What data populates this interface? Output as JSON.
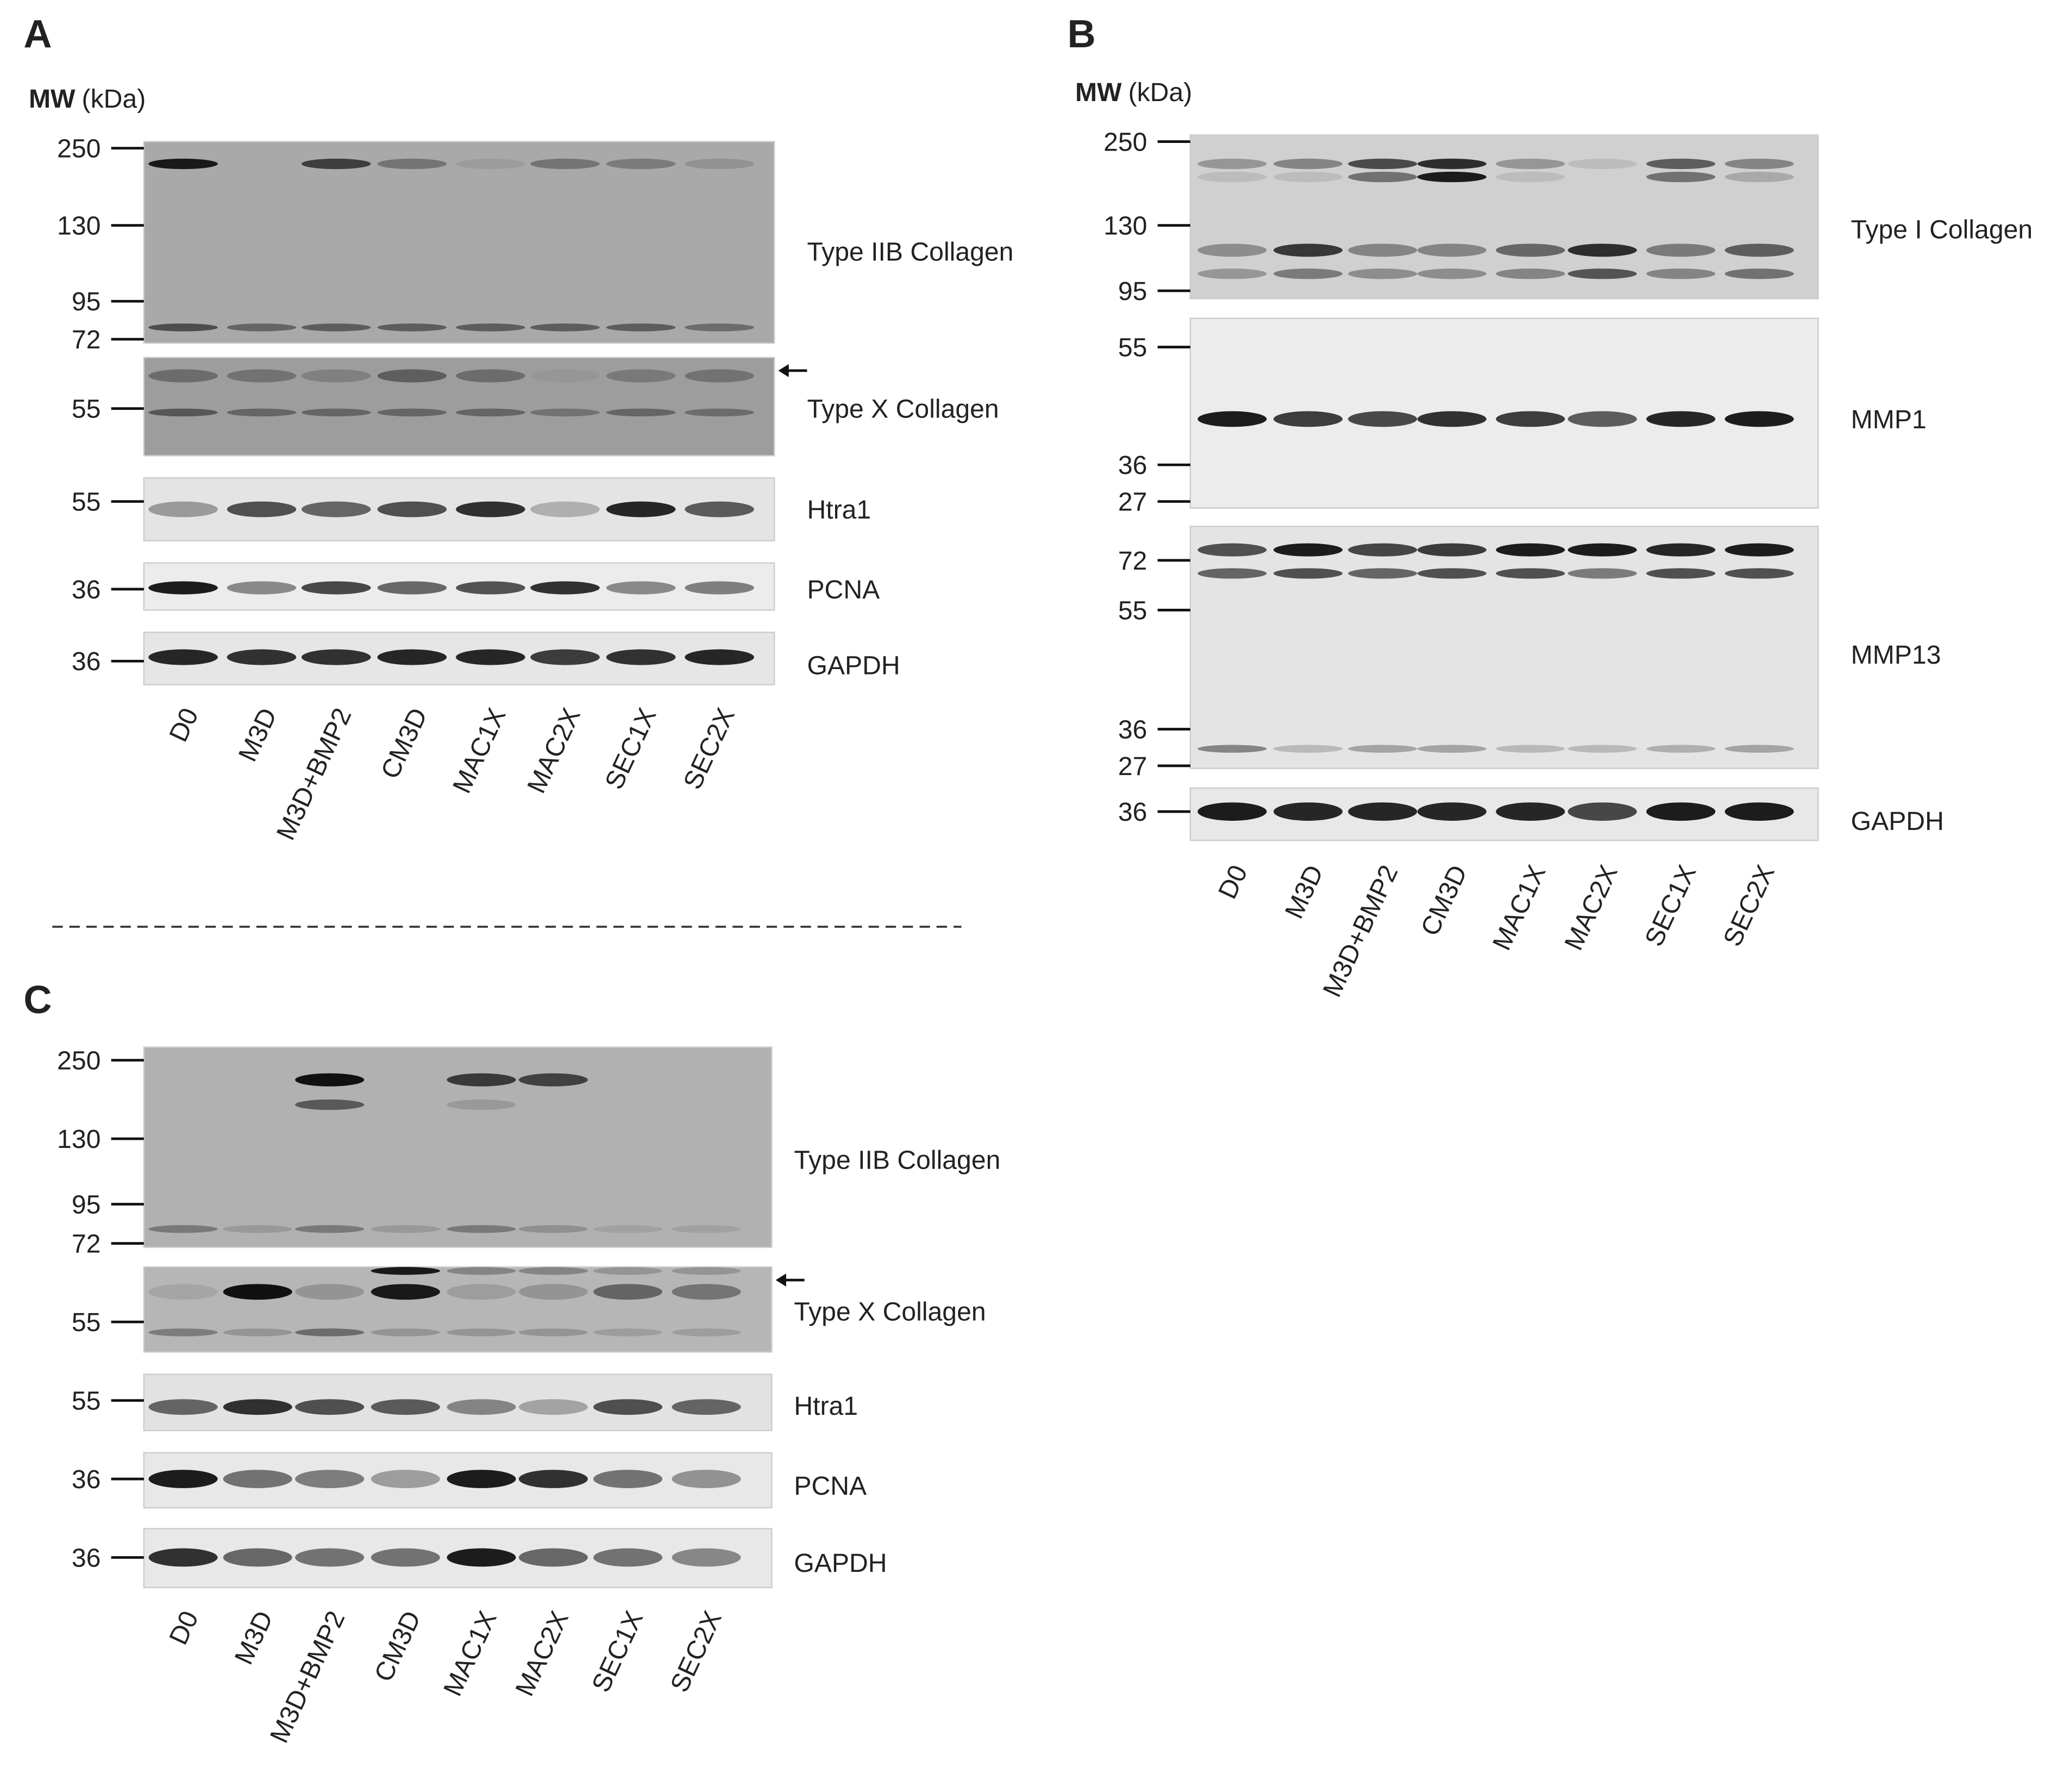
{
  "panels": [
    {
      "label": "A",
      "mw_label": {
        "bold": "MW",
        "unit": "(kDa)"
      },
      "blots": [
        {
          "name": "Type IIB Collagen",
          "markers": [
            250,
            130,
            95,
            72
          ]
        },
        {
          "name": "Type X Collagen",
          "markers": [
            55
          ]
        },
        {
          "name": "Htra1",
          "markers": [
            55
          ]
        },
        {
          "name": "PCNA",
          "markers": [
            36
          ]
        },
        {
          "name": "GAPDH",
          "markers": [
            36
          ]
        }
      ],
      "lanes": [
        "D0",
        "M3D",
        "M3D+BMP2",
        "CM3D",
        "MAC1X",
        "MAC2X",
        "SEC1X",
        "SEC2X"
      ]
    },
    {
      "label": "B",
      "mw_label": {
        "bold": "MW",
        "unit": "(kDa)"
      },
      "blots": [
        {
          "name": "Type I Collagen",
          "markers": [
            250,
            130,
            95
          ]
        },
        {
          "name": "MMP1",
          "markers": [
            55,
            36,
            27
          ]
        },
        {
          "name": "MMP13",
          "markers": [
            72,
            55,
            36,
            27
          ]
        },
        {
          "name": "GAPDH",
          "markers": [
            36
          ]
        }
      ],
      "lanes": [
        "D0",
        "M3D",
        "M3D+BMP2",
        "CM3D",
        "MAC1X",
        "MAC2X",
        "SEC1X",
        "SEC2X"
      ]
    },
    {
      "label": "C",
      "blots": [
        {
          "name": "Type IIB Collagen",
          "markers": [
            250,
            130,
            95,
            72
          ]
        },
        {
          "name": "Type X Collagen",
          "markers": [
            55
          ]
        },
        {
          "name": "Htra1",
          "markers": [
            55
          ]
        },
        {
          "name": "PCNA",
          "markers": [
            36
          ]
        },
        {
          "name": "GAPDH",
          "markers": [
            36
          ]
        }
      ],
      "lanes": [
        "D0",
        "M3D",
        "M3D+BMP2",
        "CM3D",
        "MAC1X",
        "MAC2X",
        "SEC1X",
        "SEC2X"
      ]
    }
  ]
}
